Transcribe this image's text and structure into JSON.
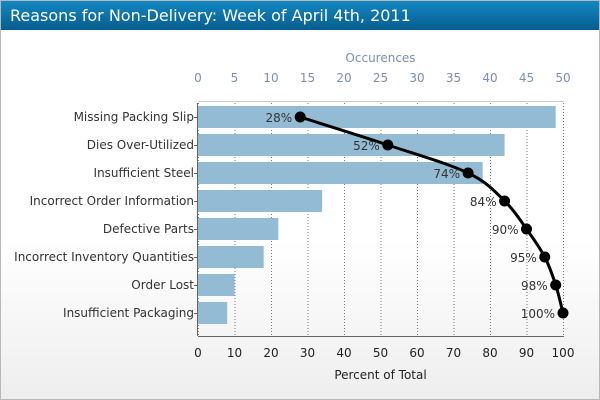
{
  "panel": {
    "title": "Reasons for Non-Delivery: Week of April 4th, 2011"
  },
  "chart_data": {
    "type": "bar",
    "orientation": "horizontal",
    "categories": [
      "Missing Packing Slip",
      "Dies Over-Utilized",
      "Insufficient Steel",
      "Incorrect Order Information",
      "Defective Parts",
      "Incorrect Inventory Quantities",
      "Order Lost",
      "Insufficient Packaging"
    ],
    "series": [
      {
        "type": "bar",
        "axis": "top",
        "values": [
          49,
          42,
          39,
          17,
          11,
          9,
          5,
          4
        ],
        "color": "#93bcd4"
      },
      {
        "type": "line",
        "axis": "bottom",
        "values": [
          28,
          52,
          74,
          84,
          90,
          95,
          98,
          100
        ],
        "labels": [
          "28%",
          "52%",
          "74%",
          "84%",
          "90%",
          "95%",
          "98%",
          "100%"
        ],
        "color": "#000000"
      }
    ],
    "top_axis": {
      "label": "Occurences",
      "range": [
        0,
        50
      ],
      "ticks": [
        "0",
        "5",
        "10",
        "15",
        "20",
        "25",
        "30",
        "35",
        "40",
        "45",
        "50"
      ],
      "color": "#7b8fb0"
    },
    "bottom_axis": {
      "label": "Percent of Total",
      "range": [
        0,
        100
      ],
      "ticks": [
        "0",
        "10",
        "20",
        "30",
        "40",
        "50",
        "60",
        "70",
        "80",
        "90",
        "100"
      ]
    },
    "grid": "vertical dotted"
  }
}
